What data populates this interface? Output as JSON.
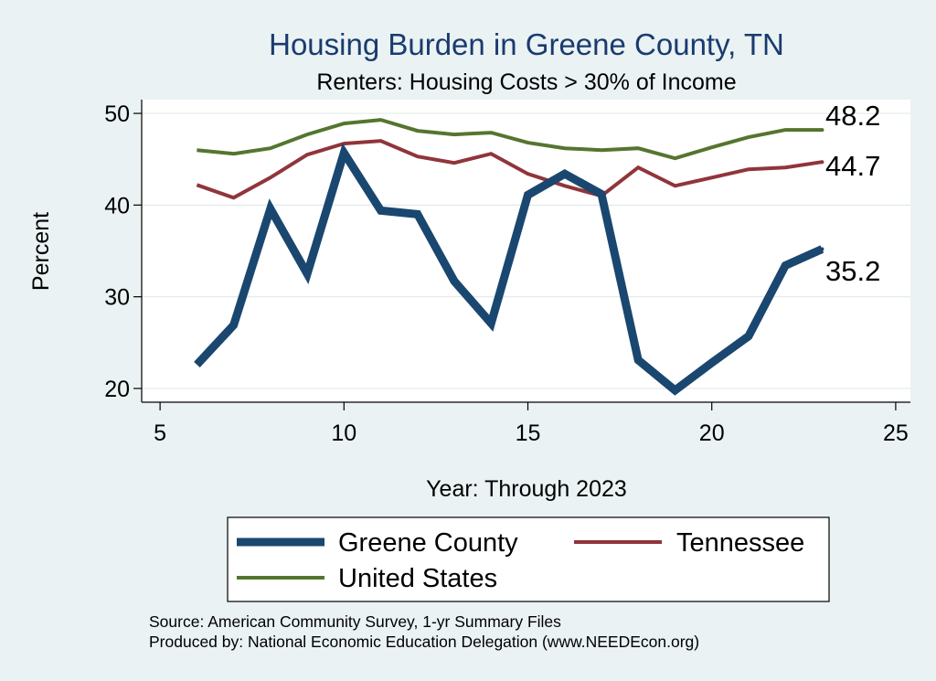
{
  "chart_data": {
    "type": "line",
    "title": "Housing Burden in Greene County, TN",
    "subtitle": "Renters: Housing Costs > 30% of Income",
    "xlabel": "Year: Through 2023",
    "ylabel": "Percent",
    "xlim": [
      4.5,
      25.4
    ],
    "ylim": [
      18.5,
      51.5
    ],
    "xticks": [
      5,
      10,
      15,
      20,
      25
    ],
    "yticks": [
      20,
      30,
      40,
      50
    ],
    "grid": true,
    "x": [
      6,
      7,
      8,
      9,
      10,
      11,
      12,
      13,
      14,
      15,
      16,
      17,
      18,
      19,
      20,
      21,
      22,
      23
    ],
    "series": [
      {
        "name": "Greene County",
        "color": "#1a476f",
        "values": [
          22.6,
          26.9,
          39.6,
          32.5,
          45.7,
          39.4,
          39.0,
          31.7,
          27.1,
          41.1,
          43.4,
          41.2,
          23.1,
          19.8,
          22.8,
          25.7,
          33.4,
          35.2
        ],
        "end_label": "35.2"
      },
      {
        "name": "Tennessee",
        "color": "#90353b",
        "values": [
          42.2,
          40.8,
          43.0,
          45.5,
          46.7,
          47.0,
          45.3,
          44.6,
          45.6,
          43.4,
          42.1,
          41.0,
          44.1,
          42.1,
          43.0,
          43.9,
          44.1,
          44.7
        ],
        "end_label": "44.7"
      },
      {
        "name": "United States",
        "color": "#55752f",
        "values": [
          46.0,
          45.6,
          46.2,
          47.7,
          48.9,
          49.3,
          48.1,
          47.7,
          47.9,
          46.8,
          46.2,
          46.0,
          46.2,
          45.1,
          46.3,
          47.4,
          48.2,
          48.2
        ],
        "end_label": "48.2"
      }
    ],
    "legend": {
      "position": "bottom",
      "order": [
        "Greene County",
        "Tennessee",
        "United States"
      ]
    }
  },
  "footer": {
    "source": "Source: American Community Survey, 1-yr Summary Files",
    "produced_by": "Produced by: National Economic Education Delegation (www.NEEDEcon.org)"
  }
}
